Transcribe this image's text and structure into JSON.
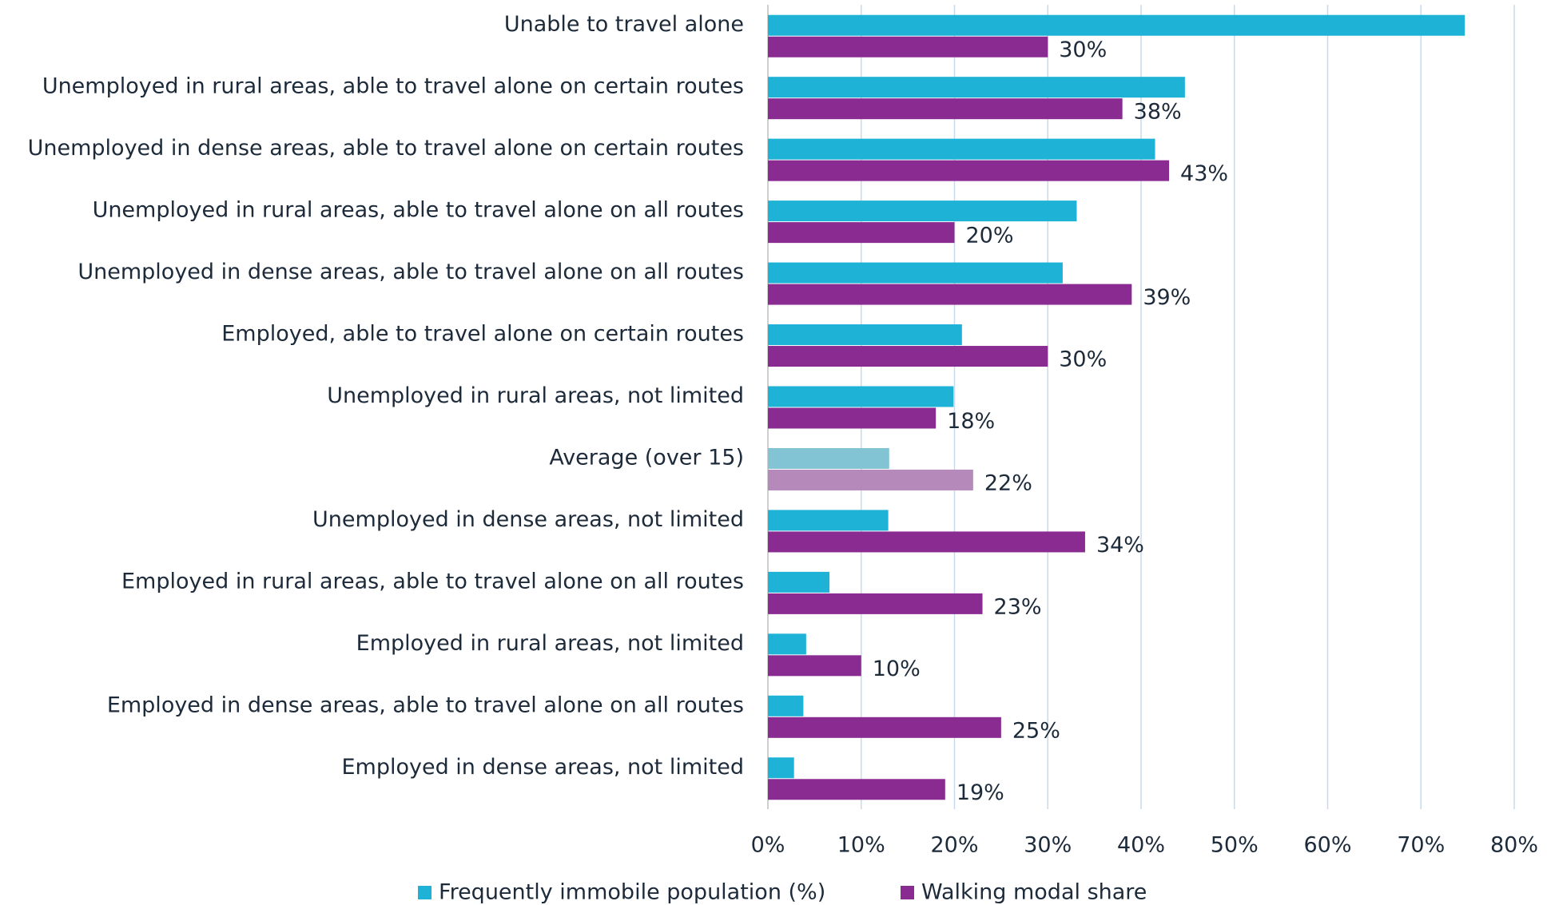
{
  "chart_data": {
    "type": "hbar",
    "categories": [
      "Unable to travel alone",
      "Unemployed in rural areas, able to travel alone on certain routes",
      "Unemployed in dense areas, able to travel alone on certain routes",
      "Unemployed in rural areas, able to travel alone on all routes",
      "Unemployed in dense areas, able to travel alone on all routes",
      "Employed, able to travel alone on certain routes",
      "Unemployed in rural areas, not limited",
      "Average (over 15)",
      "Unemployed in dense areas, not limited",
      "Employed in rural areas, able to travel alone on all routes",
      "Employed in rural areas, not limited",
      "Employed in dense areas, able to travel alone on all routes",
      "Employed in dense areas, not limited"
    ],
    "series": [
      {
        "name": "Frequently immobile population (%)",
        "color": "#1eb2d6",
        "colors": [
          "#1eb2d6",
          "#1eb2d6",
          "#1eb2d6",
          "#1eb2d6",
          "#1eb2d6",
          "#1eb2d6",
          "#1eb2d6",
          "#82c4d4",
          "#1eb2d6",
          "#1eb2d6",
          "#1eb2d6",
          "#1eb2d6",
          "#1eb2d6"
        ],
        "values": [
          74.7,
          44.7,
          41.5,
          33.1,
          31.6,
          20.8,
          19.9,
          13.0,
          12.9,
          6.6,
          4.1,
          3.8,
          2.8
        ]
      },
      {
        "name": "Walking modal share",
        "color": "#8a2b92",
        "colors": [
          "#8a2b92",
          "#8a2b92",
          "#8a2b92",
          "#8a2b92",
          "#8a2b92",
          "#8a2b92",
          "#8a2b92",
          "#b58abb",
          "#8a2b92",
          "#8a2b92",
          "#8a2b92",
          "#8a2b92",
          "#8a2b92"
        ],
        "values": [
          30,
          38,
          43,
          20,
          39,
          30,
          18,
          22,
          34,
          23,
          10,
          25,
          19
        ],
        "value_labels": [
          "30%",
          "38%",
          "43%",
          "20%",
          "39%",
          "30%",
          "18%",
          "22%",
          "34%",
          "23%",
          "10%",
          "25%",
          "19%"
        ]
      }
    ],
    "xlim": [
      0,
      80
    ],
    "xticks": [
      {
        "value": 0,
        "label": "0%"
      },
      {
        "value": 10,
        "label": "10%"
      },
      {
        "value": 20,
        "label": "20%"
      },
      {
        "value": 30,
        "label": "30%"
      },
      {
        "value": 40,
        "label": "40%"
      },
      {
        "value": 50,
        "label": "50%"
      },
      {
        "value": 60,
        "label": "60%"
      },
      {
        "value": 70,
        "label": "70%"
      },
      {
        "value": 80,
        "label": "80%"
      }
    ],
    "grid": true,
    "legend": "bottom"
  }
}
